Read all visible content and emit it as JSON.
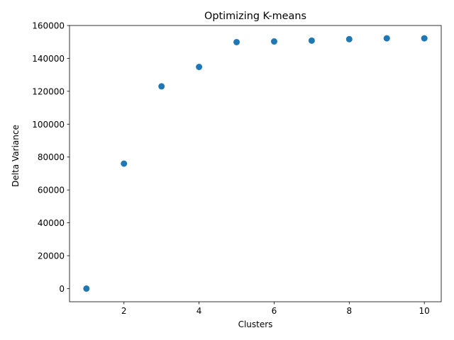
{
  "chart_data": {
    "type": "scatter",
    "title": "Optimizing K-means",
    "xlabel": "Clusters",
    "ylabel": "Delta Variance",
    "x": [
      1,
      2,
      3,
      4,
      5,
      6,
      7,
      8,
      9,
      10
    ],
    "y": [
      0,
      76000,
      123000,
      134800,
      149900,
      150300,
      150800,
      151700,
      152200,
      152200
    ],
    "xlim": [
      0.55,
      10.45
    ],
    "ylim": [
      -8000,
      160000
    ],
    "xticks": [
      2,
      4,
      6,
      8,
      10
    ],
    "xtick_labels": [
      "2",
      "4",
      "6",
      "8",
      "10"
    ],
    "yticks": [
      0,
      20000,
      40000,
      60000,
      80000,
      100000,
      120000,
      140000,
      160000
    ],
    "ytick_labels": [
      "0",
      "20000",
      "40000",
      "60000",
      "80000",
      "100000",
      "120000",
      "140000",
      "160000"
    ],
    "marker_color": "#1f77b4",
    "grid": false,
    "legend": false
  }
}
